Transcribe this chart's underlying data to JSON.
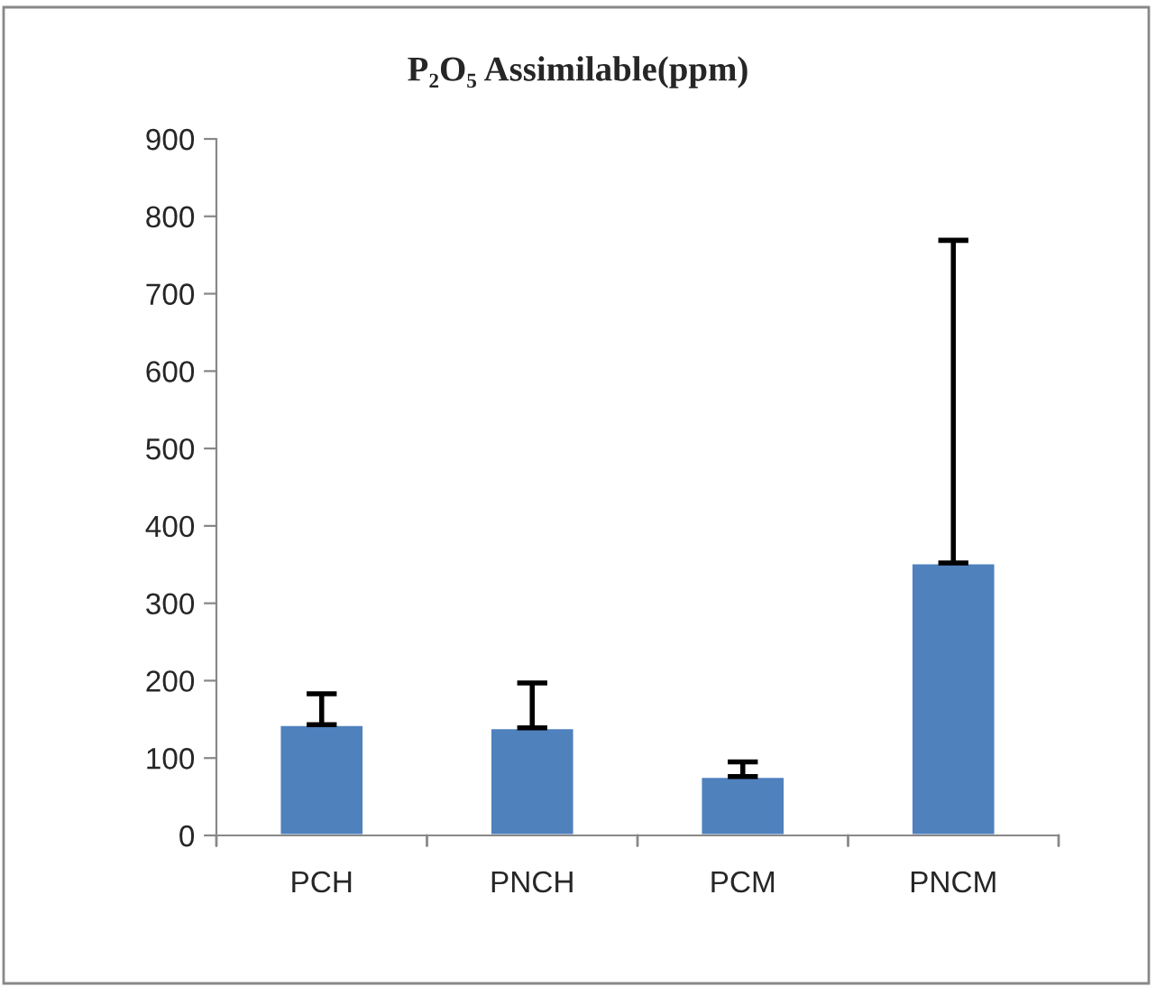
{
  "chart_data": {
    "type": "bar",
    "title": "P₂O₅ Assimilable(ppm)",
    "categories": [
      "PCH",
      "PNCH",
      "PCM",
      "PNCM"
    ],
    "values": [
      143,
      139,
      76,
      352
    ],
    "errors": [
      [
        143,
        183
      ],
      [
        139,
        197
      ],
      [
        76,
        95
      ],
      [
        352,
        769
      ]
    ],
    "color": "#4f81bd",
    "ylim": [
      0,
      900
    ],
    "yticks": [
      0,
      100,
      200,
      300,
      400,
      500,
      600,
      700,
      800,
      900
    ],
    "grid": false,
    "legend": false
  }
}
